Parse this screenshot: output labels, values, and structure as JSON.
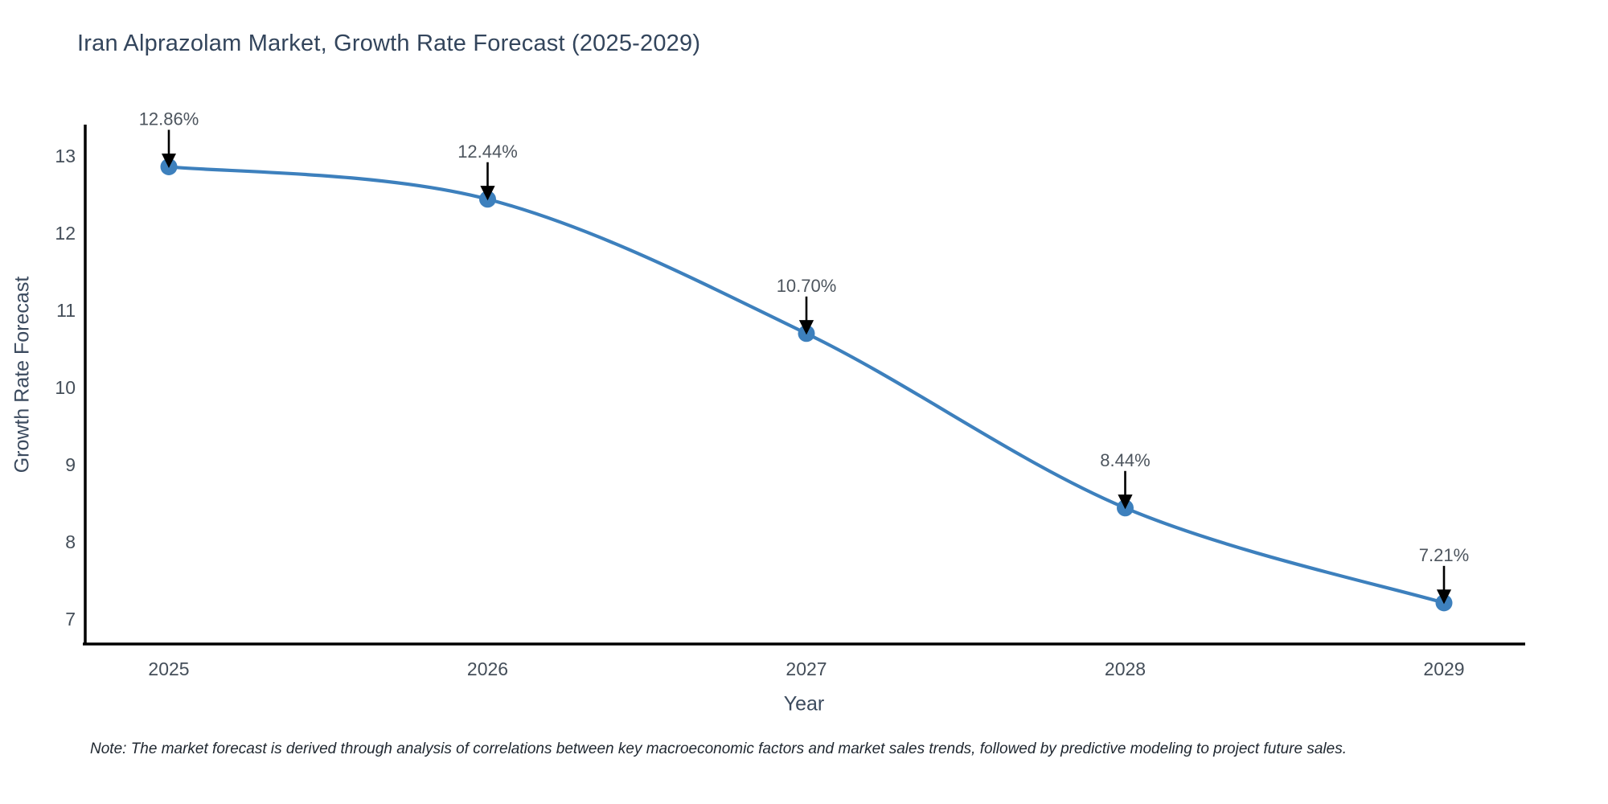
{
  "title": "Iran Alprazolam Market, Growth Rate Forecast (2025-2029)",
  "note": "Note: The market forecast is derived through analysis of correlations between key macroeconomic factors and market sales trends, followed by predictive modeling to project future sales.",
  "chart_data": {
    "type": "line",
    "title": "Iran Alprazolam Market, Growth Rate Forecast (2025-2029)",
    "categories": [
      "2025",
      "2026",
      "2027",
      "2028",
      "2029"
    ],
    "x": [
      2025,
      2026,
      2027,
      2028,
      2029
    ],
    "values": [
      12.86,
      12.44,
      10.7,
      8.44,
      7.21
    ],
    "point_labels": [
      "12.86%",
      "12.44%",
      "10.70%",
      "8.44%",
      "7.21%"
    ],
    "xlabel": "Year",
    "ylabel": "Growth Rate Forecast",
    "yticks": [
      7,
      8,
      9,
      10,
      11,
      12,
      13
    ],
    "ylim": [
      6.69,
      13.72
    ],
    "line_shape": "spline",
    "grid": false,
    "legend": "none",
    "colors": {
      "line": "#3d80bd",
      "marker": "#3d80bd",
      "arrow": "#000000",
      "axis": "#000000",
      "title_text": "#33455c",
      "tick_text": "#444e59",
      "annotation_text": "#4d555e"
    }
  }
}
